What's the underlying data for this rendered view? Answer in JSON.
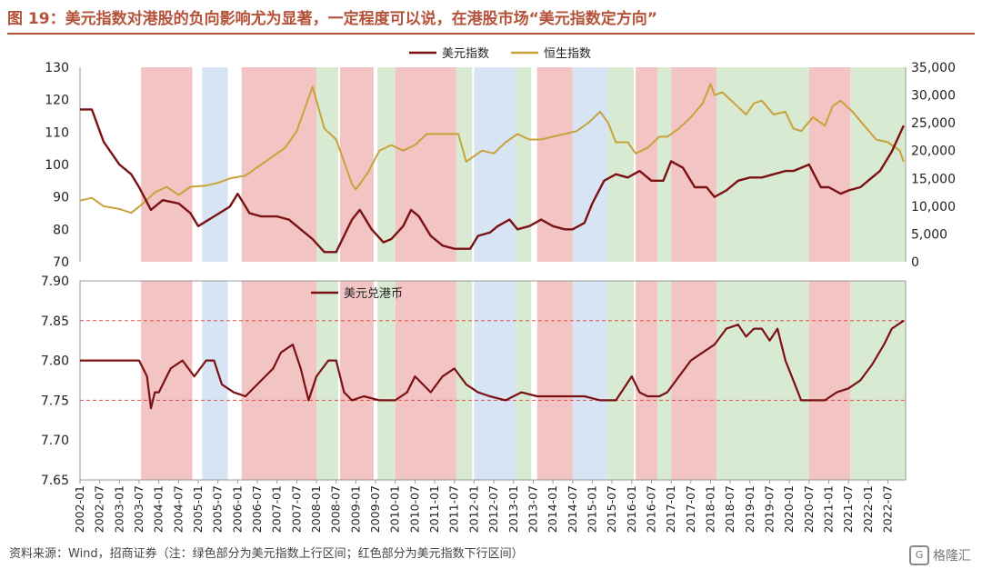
{
  "title": "图 19：美元指数对港股的负向影响尤为显著，一定程度可以说，在港股市场“美元指数定方向”",
  "source": "资料来源：Wind，招商证券（注：绿色部分为美元指数上行区间；红色部分为美元指数下行区间）",
  "watermark": "格隆汇",
  "watermark_logo": "G",
  "colors": {
    "red_band": "#f2c4c4",
    "green_band": "#d9ead3",
    "blue_band": "#d6e4f3",
    "usd_line": "#7b1113",
    "hsi_line": "#c8a23a",
    "hkd_line": "#7b1113",
    "ref_line": "#e05050"
  },
  "chart_data": [
    {
      "type": "line",
      "legend": [
        "美元指数",
        "恒生指数"
      ],
      "legend_position": "top-center",
      "y_left": {
        "ylim": [
          70,
          130
        ],
        "ticks": [
          "130",
          "120",
          "110",
          "100",
          "90",
          "80",
          "70"
        ]
      },
      "y_right": {
        "ylim": [
          0,
          35000
        ],
        "ticks": [
          "35,000",
          "30,000",
          "25,000",
          "20,000",
          "15,000",
          "10,000",
          "5,000",
          "0"
        ]
      },
      "series": [
        {
          "name": "美元指数",
          "axis": "left",
          "x": [
            2002.0,
            2002.3,
            2002.6,
            2003.0,
            2003.3,
            2003.5,
            2003.8,
            2004.1,
            2004.5,
            2004.8,
            2005.0,
            2005.4,
            2005.8,
            2006.0,
            2006.3,
            2006.6,
            2007.0,
            2007.3,
            2007.6,
            2007.9,
            2008.2,
            2008.5,
            2008.9,
            2009.1,
            2009.4,
            2009.7,
            2009.9,
            2010.2,
            2010.4,
            2010.6,
            2010.9,
            2011.2,
            2011.5,
            2011.9,
            2012.1,
            2012.4,
            2012.6,
            2012.9,
            2013.1,
            2013.4,
            2013.7,
            2014.0,
            2014.3,
            2014.5,
            2014.8,
            2015.0,
            2015.3,
            2015.6,
            2015.9,
            2016.2,
            2016.5,
            2016.8,
            2017.0,
            2017.3,
            2017.6,
            2017.9,
            2018.1,
            2018.4,
            2018.7,
            2019.0,
            2019.3,
            2019.6,
            2019.9,
            2020.1,
            2020.3,
            2020.5,
            2020.8,
            2021.0,
            2021.3,
            2021.5,
            2021.8,
            2022.0,
            2022.3,
            2022.6,
            2022.9
          ],
          "values": [
            117,
            117,
            107,
            100,
            97,
            93,
            86,
            89,
            88,
            85,
            81,
            84,
            87,
            91,
            85,
            84,
            84,
            83,
            80,
            77,
            73,
            73,
            83,
            86,
            80,
            76,
            77,
            81,
            86,
            84,
            78,
            75,
            74,
            74,
            78,
            79,
            81,
            83,
            80,
            81,
            83,
            81,
            80,
            80,
            82,
            88,
            95,
            97,
            96,
            98,
            95,
            95,
            101,
            99,
            93,
            93,
            90,
            92,
            95,
            96,
            96,
            97,
            98,
            98,
            99,
            100,
            93,
            93,
            91,
            92,
            93,
            95,
            98,
            104,
            112
          ]
        },
        {
          "name": "恒生指数",
          "axis": "right",
          "x": [
            2002.0,
            2002.3,
            2002.6,
            2003.0,
            2003.3,
            2003.6,
            2003.9,
            2004.2,
            2004.5,
            2004.8,
            2005.2,
            2005.5,
            2005.8,
            2006.2,
            2006.5,
            2006.8,
            2007.2,
            2007.5,
            2007.7,
            2007.9,
            2008.2,
            2008.5,
            2008.9,
            2009.0,
            2009.3,
            2009.6,
            2009.9,
            2010.2,
            2010.5,
            2010.8,
            2011.2,
            2011.6,
            2011.8,
            2012.2,
            2012.5,
            2012.8,
            2013.1,
            2013.4,
            2013.7,
            2014.0,
            2014.3,
            2014.6,
            2014.9,
            2015.2,
            2015.4,
            2015.6,
            2015.9,
            2016.1,
            2016.4,
            2016.7,
            2016.9,
            2017.2,
            2017.5,
            2017.8,
            2018.0,
            2018.1,
            2018.3,
            2018.6,
            2018.9,
            2019.1,
            2019.3,
            2019.6,
            2019.9,
            2020.1,
            2020.3,
            2020.6,
            2020.9,
            2021.1,
            2021.3,
            2021.6,
            2021.9,
            2022.2,
            2022.5,
            2022.8,
            2022.9
          ],
          "values": [
            11000,
            11500,
            10000,
            9500,
            8800,
            10500,
            12500,
            13500,
            12000,
            13500,
            13700,
            14200,
            15000,
            15500,
            17000,
            18500,
            20500,
            23500,
            27500,
            31500,
            24000,
            22000,
            14000,
            13000,
            16000,
            20000,
            21000,
            20000,
            21000,
            23000,
            23000,
            23000,
            18000,
            20000,
            19500,
            21500,
            23000,
            22000,
            22000,
            22500,
            23000,
            23500,
            25000,
            27000,
            25000,
            21500,
            21500,
            19500,
            20500,
            22500,
            22500,
            24000,
            26000,
            28500,
            32000,
            30000,
            30500,
            28500,
            26500,
            28500,
            29000,
            26500,
            27000,
            24000,
            23500,
            26000,
            24500,
            28000,
            29000,
            27000,
            24500,
            22000,
            21500,
            20000,
            18000
          ]
        }
      ]
    },
    {
      "type": "line",
      "legend": [
        "美元兑港币"
      ],
      "legend_position": "top-left",
      "ylim": [
        7.65,
        7.9
      ],
      "y_ticks": [
        "7.90",
        "7.85",
        "7.80",
        "7.75",
        "7.70",
        "7.65"
      ],
      "reference_lines": [
        7.85,
        7.75
      ],
      "x_ticks": [
        "2002-01",
        "2002-07",
        "2003-01",
        "2003-07",
        "2004-01",
        "2004-07",
        "2005-01",
        "2005-07",
        "2006-01",
        "2006-07",
        "2007-01",
        "2007-07",
        "2008-01",
        "2008-07",
        "2009-01",
        "2009-07",
        "2010-01",
        "2010-07",
        "2011-01",
        "2011-07",
        "2012-01",
        "2012-07",
        "2013-01",
        "2013-07",
        "2014-01",
        "2014-07",
        "2015-01",
        "2015-07",
        "2016-01",
        "2016-07",
        "2017-01",
        "2017-07",
        "2018-01",
        "2018-07",
        "2019-01",
        "2019-07",
        "2020-01",
        "2020-07",
        "2021-01",
        "2021-07",
        "2022-01",
        "2022-07"
      ],
      "series": [
        {
          "name": "美元兑港币",
          "x": [
            2002.0,
            2002.5,
            2003.0,
            2003.5,
            2003.7,
            2003.8,
            2003.9,
            2004.0,
            2004.3,
            2004.6,
            2004.9,
            2005.2,
            2005.4,
            2005.6,
            2005.9,
            2006.2,
            2006.5,
            2006.9,
            2007.1,
            2007.4,
            2007.6,
            2007.8,
            2008.0,
            2008.3,
            2008.5,
            2008.7,
            2008.9,
            2009.2,
            2009.6,
            2010.0,
            2010.3,
            2010.5,
            2010.7,
            2010.9,
            2011.2,
            2011.5,
            2011.8,
            2012.1,
            2012.4,
            2012.8,
            2013.2,
            2013.6,
            2014.0,
            2014.4,
            2014.8,
            2015.2,
            2015.6,
            2016.0,
            2016.2,
            2016.4,
            2016.7,
            2016.9,
            2017.2,
            2017.5,
            2017.8,
            2018.1,
            2018.4,
            2018.7,
            2018.9,
            2019.1,
            2019.3,
            2019.5,
            2019.7,
            2019.9,
            2020.1,
            2020.3,
            2020.6,
            2020.9,
            2021.2,
            2021.5,
            2021.8,
            2022.1,
            2022.4,
            2022.6,
            2022.9
          ],
          "values": [
            7.8,
            7.8,
            7.8,
            7.8,
            7.78,
            7.74,
            7.76,
            7.76,
            7.79,
            7.8,
            7.78,
            7.8,
            7.8,
            7.77,
            7.76,
            7.755,
            7.77,
            7.79,
            7.81,
            7.82,
            7.79,
            7.75,
            7.78,
            7.8,
            7.8,
            7.76,
            7.75,
            7.755,
            7.75,
            7.75,
            7.76,
            7.78,
            7.77,
            7.76,
            7.78,
            7.79,
            7.77,
            7.76,
            7.755,
            7.75,
            7.76,
            7.755,
            7.755,
            7.755,
            7.755,
            7.75,
            7.75,
            7.78,
            7.76,
            7.755,
            7.755,
            7.76,
            7.78,
            7.8,
            7.81,
            7.82,
            7.84,
            7.845,
            7.83,
            7.84,
            7.84,
            7.825,
            7.84,
            7.8,
            7.775,
            7.75,
            7.75,
            7.75,
            7.76,
            7.765,
            7.775,
            7.795,
            7.82,
            7.84,
            7.85
          ]
        }
      ]
    }
  ]
}
